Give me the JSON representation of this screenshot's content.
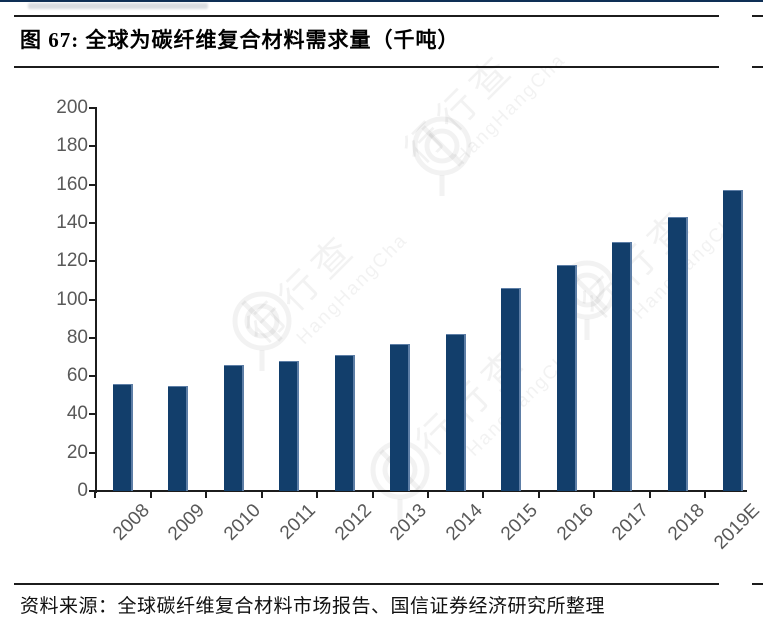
{
  "page": {
    "accent_color": "#0e2f55"
  },
  "figure": {
    "title": "图 67:  全球为碳纤维复合材料需求量（千吨）",
    "source": "资料来源：全球碳纤维复合材料市场报告、国信证券经济研究所整理"
  },
  "watermark": {
    "cn": "行行查",
    "en": "HangHangCha"
  },
  "chart_data": {
    "type": "bar",
    "title": "全球为碳纤维复合材料需求量（千吨）",
    "categories": [
      "2008",
      "2009",
      "2010",
      "2011",
      "2012",
      "2013",
      "2014",
      "2015",
      "2016",
      "2017",
      "2018",
      "2019E"
    ],
    "values": [
      56,
      55,
      66,
      68,
      71,
      77,
      82,
      106,
      118,
      130,
      143,
      157
    ],
    "xlabel": "",
    "ylabel": "",
    "ylim": [
      0,
      200
    ],
    "ytick_step": 20,
    "grid": false,
    "legend": "none",
    "bar_color": "#123e6b",
    "bar_edge_color": "#5d7ea6",
    "axis_color": "#1c1c1c",
    "tick_label_color": "#595959"
  }
}
